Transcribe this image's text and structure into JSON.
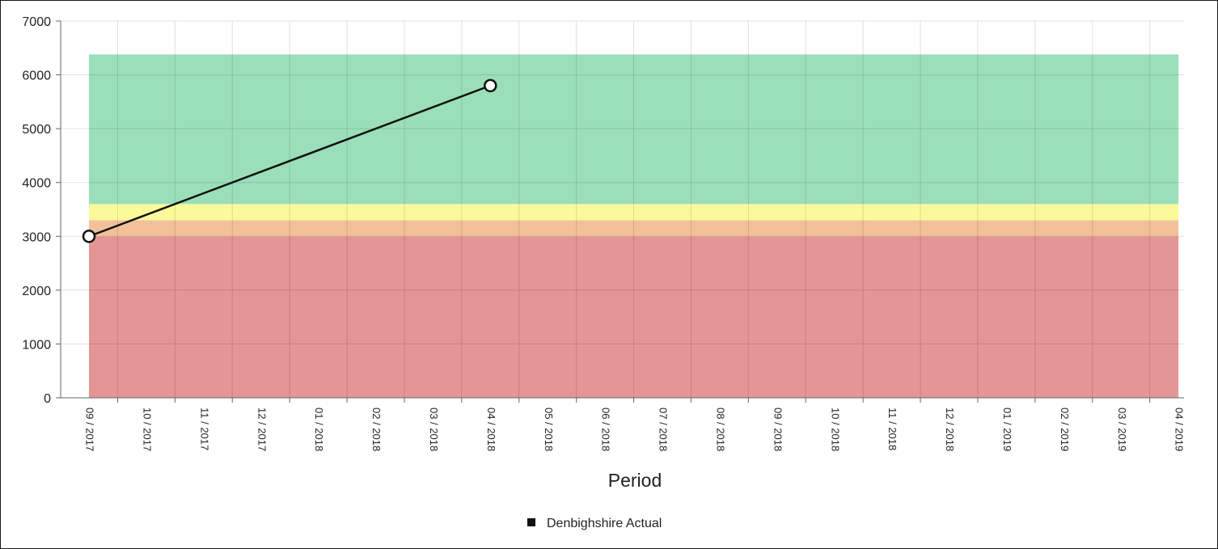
{
  "chart_data": {
    "type": "line",
    "title": "",
    "xlabel": "Period",
    "ylabel": "",
    "ylim": [
      0,
      7000
    ],
    "y_ticks": [
      0,
      1000,
      2000,
      3000,
      4000,
      5000,
      6000,
      7000
    ],
    "categories": [
      "09 / 2017",
      "10 / 2017",
      "11 / 2017",
      "12 / 2017",
      "01 / 2018",
      "02 / 2018",
      "03 / 2018",
      "04 / 2018",
      "05 / 2018",
      "06 / 2018",
      "07 / 2018",
      "08 / 2018",
      "09 / 2018",
      "10 / 2018",
      "11 / 2018",
      "12 / 2018",
      "01 / 2019",
      "02 / 2019",
      "03 / 2019",
      "04 / 2019"
    ],
    "series": [
      {
        "name": "Denbighshire Actual",
        "color": "#111111",
        "points": [
          {
            "x": "09 / 2017",
            "y": 3000
          },
          {
            "x": "04 / 2018",
            "y": 5800
          }
        ]
      }
    ],
    "bands": [
      {
        "label": "red",
        "from": 0,
        "to": 3000,
        "color": "#e49595"
      },
      {
        "label": "amber",
        "from": 3000,
        "to": 3300,
        "color": "#f2c19a"
      },
      {
        "label": "yellow",
        "from": 3300,
        "to": 3600,
        "color": "#fbfa9a"
      },
      {
        "label": "green",
        "from": 3600,
        "to": 6380,
        "color": "#9adfb9"
      }
    ],
    "grid": true,
    "legend_position": "bottom-center"
  }
}
